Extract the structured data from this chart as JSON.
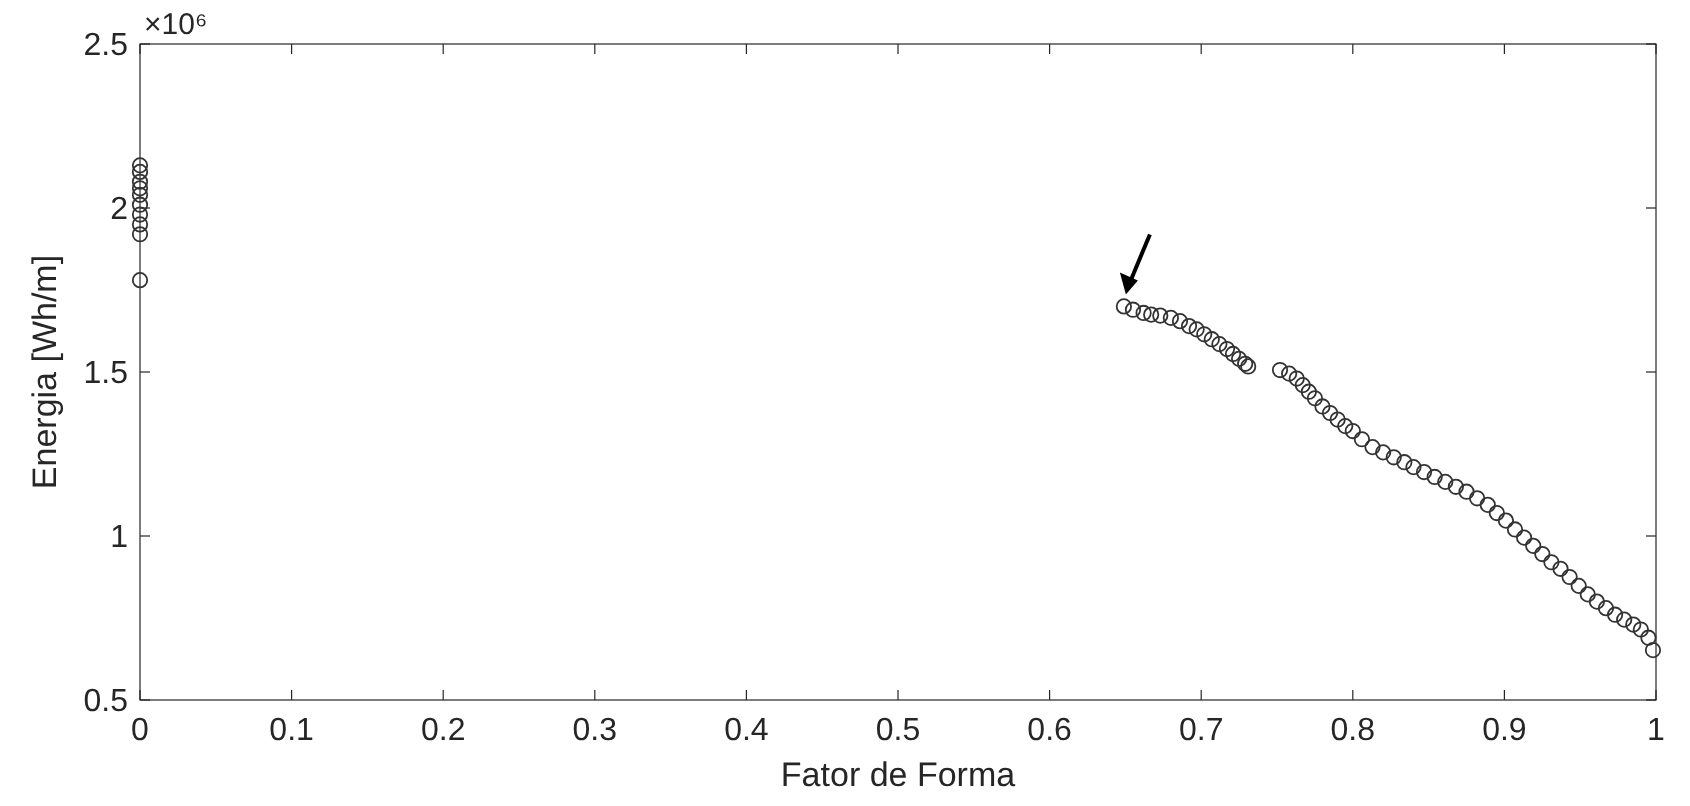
{
  "chart_data": {
    "type": "scatter",
    "xlabel": "Fator de Forma",
    "ylabel": "Energia [Wh/m]",
    "annotations": [
      "×10⁶"
    ],
    "marker": "circle",
    "grid": false,
    "xlim": [
      0,
      1
    ],
    "xticks": [
      0,
      0.1,
      0.2,
      0.3,
      0.4,
      0.5,
      0.6,
      0.7,
      0.8,
      0.9,
      1
    ],
    "ylim": [
      0.5,
      2.5
    ],
    "yticks": [
      0.5,
      1,
      1.5,
      2,
      2.5
    ],
    "series": [
      {
        "color": "#333333",
        "x": [
          0,
          0,
          0,
          0,
          0,
          0,
          0,
          0,
          0,
          0,
          0.649,
          0.655,
          0.662,
          0.667,
          0.673,
          0.68,
          0.686,
          0.692,
          0.697,
          0.702,
          0.707,
          0.712,
          0.717,
          0.721,
          0.725,
          0.729,
          0.731,
          0.752,
          0.758,
          0.763,
          0.767,
          0.771,
          0.775,
          0.78,
          0.785,
          0.79,
          0.795,
          0.8,
          0.806,
          0.813,
          0.82,
          0.827,
          0.834,
          0.84,
          0.847,
          0.854,
          0.861,
          0.868,
          0.875,
          0.882,
          0.889,
          0.895,
          0.901,
          0.907,
          0.913,
          0.919,
          0.925,
          0.931,
          0.937,
          0.943,
          0.949,
          0.955,
          0.961,
          0.967,
          0.973,
          0.979,
          0.985,
          0.99,
          0.995,
          0.998
        ],
        "values": [
          2.13,
          2.11,
          2.08,
          2.06,
          2.04,
          2.01,
          1.98,
          1.95,
          1.92,
          1.78,
          1.7,
          1.69,
          1.68,
          1.675,
          1.672,
          1.665,
          1.655,
          1.64,
          1.63,
          1.615,
          1.6,
          1.585,
          1.57,
          1.555,
          1.54,
          1.525,
          1.517,
          1.506,
          1.495,
          1.48,
          1.46,
          1.44,
          1.42,
          1.395,
          1.375,
          1.355,
          1.335,
          1.32,
          1.295,
          1.271,
          1.255,
          1.24,
          1.225,
          1.21,
          1.195,
          1.18,
          1.165,
          1.15,
          1.135,
          1.115,
          1.095,
          1.07,
          1.047,
          1.02,
          0.995,
          0.97,
          0.945,
          0.92,
          0.9,
          0.875,
          0.848,
          0.822,
          0.8,
          0.78,
          0.76,
          0.745,
          0.73,
          0.715,
          0.69,
          0.652
        ]
      }
    ]
  }
}
